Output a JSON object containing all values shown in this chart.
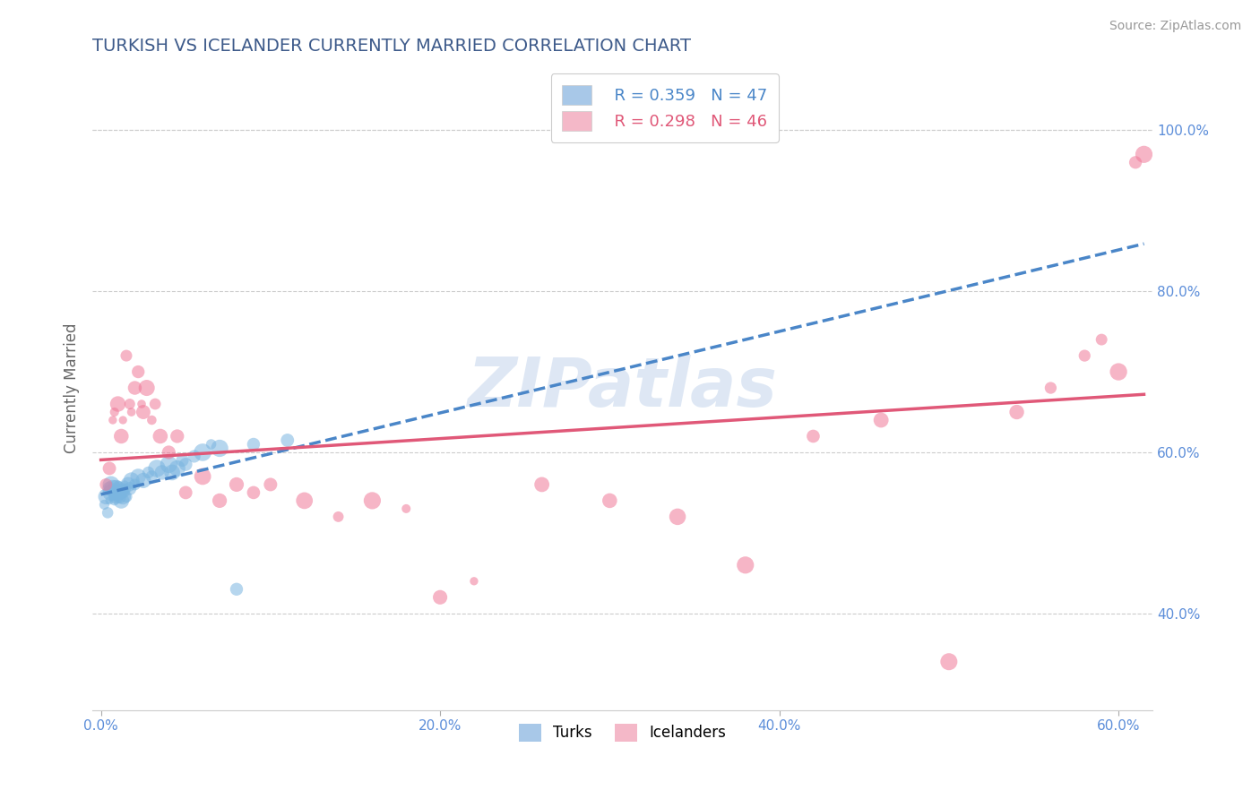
{
  "title": "TURKISH VS ICELANDER CURRENTLY MARRIED CORRELATION CHART",
  "source_text": "Source: ZipAtlas.com",
  "ylabel": "Currently Married",
  "xlim": [
    -0.005,
    0.62
  ],
  "ylim": [
    0.28,
    1.08
  ],
  "xtick_vals": [
    0.0,
    0.2,
    0.4,
    0.6
  ],
  "xtick_labels": [
    "0.0%",
    "20.0%",
    "40.0%",
    "60.0%"
  ],
  "ytick_vals": [
    0.4,
    0.6,
    0.8,
    1.0
  ],
  "ytick_labels": [
    "40.0%",
    "60.0%",
    "80.0%",
    "100.0%"
  ],
  "title_color": "#3d5a8a",
  "title_fontsize": 14,
  "axis_label_color": "#666666",
  "tick_color": "#5b8dd9",
  "grid_color": "#cccccc",
  "legend_R1": "R = 0.359",
  "legend_N1": "N = 47",
  "legend_R2": "R = 0.298",
  "legend_N2": "N = 46",
  "legend_color1": "#a8c8e8",
  "legend_color2": "#f4b8c8",
  "scatter_color1": "#7ab5e0",
  "scatter_color2": "#f07898",
  "trendline_color1": "#4a86c8",
  "trendline_color2": "#e05878",
  "turks_x": [
    0.002,
    0.003,
    0.004,
    0.005,
    0.005,
    0.006,
    0.006,
    0.007,
    0.007,
    0.008,
    0.008,
    0.009,
    0.009,
    0.01,
    0.01,
    0.011,
    0.011,
    0.012,
    0.012,
    0.013,
    0.013,
    0.014,
    0.014,
    0.015,
    0.015,
    0.016,
    0.017,
    0.018,
    0.02,
    0.022,
    0.025,
    0.028,
    0.03,
    0.033,
    0.036,
    0.04,
    0.042,
    0.045,
    0.048,
    0.05,
    0.055,
    0.06,
    0.065,
    0.07,
    0.08,
    0.09,
    0.11
  ],
  "turks_y": [
    0.535,
    0.545,
    0.525,
    0.555,
    0.54,
    0.55,
    0.56,
    0.545,
    0.555,
    0.54,
    0.55,
    0.545,
    0.555,
    0.55,
    0.56,
    0.545,
    0.555,
    0.55,
    0.54,
    0.555,
    0.545,
    0.56,
    0.55,
    0.555,
    0.545,
    0.56,
    0.555,
    0.565,
    0.56,
    0.57,
    0.565,
    0.575,
    0.57,
    0.58,
    0.575,
    0.585,
    0.575,
    0.58,
    0.59,
    0.585,
    0.595,
    0.6,
    0.61,
    0.605,
    0.43,
    0.61,
    0.615
  ],
  "icelanders_x": [
    0.003,
    0.005,
    0.007,
    0.008,
    0.01,
    0.012,
    0.013,
    0.015,
    0.017,
    0.018,
    0.02,
    0.022,
    0.024,
    0.025,
    0.027,
    0.03,
    0.032,
    0.035,
    0.04,
    0.045,
    0.05,
    0.06,
    0.07,
    0.08,
    0.09,
    0.1,
    0.12,
    0.14,
    0.16,
    0.18,
    0.2,
    0.22,
    0.26,
    0.3,
    0.34,
    0.38,
    0.42,
    0.46,
    0.5,
    0.54,
    0.56,
    0.58,
    0.59,
    0.6,
    0.61,
    0.615
  ],
  "icelanders_y": [
    0.56,
    0.58,
    0.64,
    0.65,
    0.66,
    0.62,
    0.64,
    0.72,
    0.66,
    0.65,
    0.68,
    0.7,
    0.66,
    0.65,
    0.68,
    0.64,
    0.66,
    0.62,
    0.6,
    0.62,
    0.55,
    0.57,
    0.54,
    0.56,
    0.55,
    0.56,
    0.54,
    0.52,
    0.54,
    0.53,
    0.42,
    0.44,
    0.56,
    0.54,
    0.52,
    0.46,
    0.62,
    0.64,
    0.34,
    0.65,
    0.68,
    0.72,
    0.74,
    0.7,
    0.96,
    0.97
  ],
  "scatter_alpha": 0.55,
  "legend_label1": "Turks",
  "legend_label2": "Icelanders"
}
